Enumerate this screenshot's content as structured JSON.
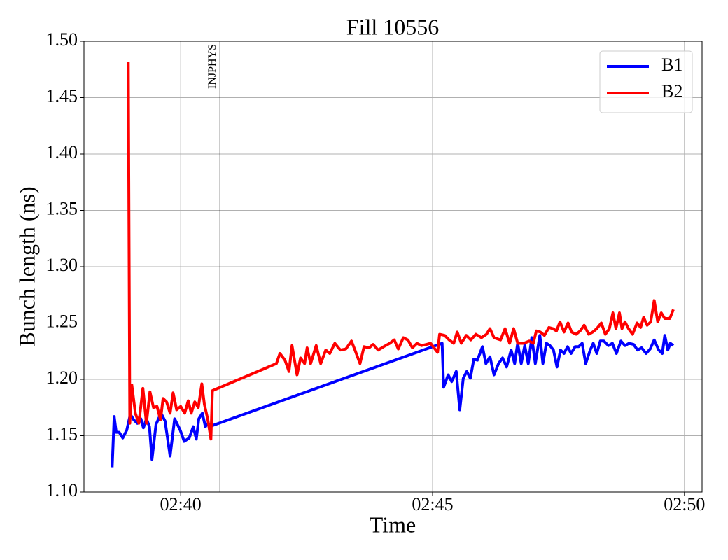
{
  "chart_data": {
    "type": "line",
    "title": "Fill 10556",
    "xlabel": "Time",
    "ylabel": "Bunch length (ns)",
    "xlim": [
      158.08,
      170.35
    ],
    "xticks": [
      {
        "value": 160,
        "label": "02:40"
      },
      {
        "value": 165,
        "label": "02:45"
      },
      {
        "value": 170,
        "label": "02:50"
      }
    ],
    "ylim": [
      1.1,
      1.5
    ],
    "yticks": [
      {
        "value": 1.1,
        "label": "1.10"
      },
      1.15,
      {
        "value": 1.2,
        "label": "1.20"
      },
      1.25,
      {
        "value": 1.3,
        "label": "1.30"
      },
      1.35,
      {
        "value": 1.4,
        "label": "1.40"
      },
      1.45,
      {
        "value": 1.5,
        "label": "1.50"
      }
    ],
    "grid": true,
    "legend": "upper right",
    "annotations": [
      {
        "text": "INJPHYS",
        "x": 160.78
      }
    ],
    "series": [
      {
        "name": "B1",
        "color": "#0000ff",
        "x": [
          158.64,
          158.68,
          158.72,
          158.78,
          158.85,
          158.93,
          159.0,
          159.07,
          159.14,
          159.21,
          159.26,
          159.32,
          159.38,
          159.43,
          159.51,
          159.61,
          159.69,
          159.79,
          159.88,
          159.99,
          160.07,
          160.17,
          160.25,
          160.31,
          160.36,
          160.43,
          160.49,
          160.54,
          160.63,
          165.19,
          165.22,
          165.31,
          165.38,
          165.47,
          165.54,
          165.61,
          165.68,
          165.75,
          165.82,
          165.89,
          165.99,
          166.06,
          166.14,
          166.22,
          166.31,
          166.39,
          166.47,
          166.56,
          166.63,
          166.69,
          166.76,
          166.83,
          166.9,
          166.97,
          167.04,
          167.13,
          167.19,
          167.26,
          167.33,
          167.4,
          167.47,
          167.54,
          167.61,
          167.68,
          167.75,
          167.83,
          167.9,
          167.97,
          168.04,
          168.13,
          168.19,
          168.26,
          168.33,
          168.4,
          168.49,
          168.57,
          168.65,
          168.74,
          168.82,
          168.9,
          168.99,
          169.07,
          169.15,
          169.24,
          169.32,
          169.4,
          169.49,
          169.56,
          169.61,
          169.67,
          169.72,
          169.78
        ],
        "values": [
          1.122,
          1.167,
          1.153,
          1.153,
          1.148,
          1.155,
          1.169,
          1.164,
          1.161,
          1.165,
          1.157,
          1.165,
          1.158,
          1.129,
          1.16,
          1.17,
          1.163,
          1.132,
          1.165,
          1.155,
          1.145,
          1.148,
          1.158,
          1.147,
          1.165,
          1.17,
          1.158,
          1.161,
          1.159,
          1.232,
          1.193,
          1.204,
          1.198,
          1.207,
          1.173,
          1.201,
          1.207,
          1.201,
          1.218,
          1.217,
          1.229,
          1.214,
          1.22,
          1.204,
          1.214,
          1.219,
          1.211,
          1.226,
          1.214,
          1.232,
          1.214,
          1.23,
          1.214,
          1.237,
          1.214,
          1.239,
          1.214,
          1.232,
          1.23,
          1.226,
          1.211,
          1.226,
          1.223,
          1.229,
          1.223,
          1.229,
          1.229,
          1.232,
          1.214,
          1.226,
          1.232,
          1.223,
          1.234,
          1.234,
          1.23,
          1.232,
          1.223,
          1.234,
          1.23,
          1.232,
          1.231,
          1.226,
          1.228,
          1.223,
          1.227,
          1.235,
          1.226,
          1.223,
          1.239,
          1.226,
          1.232,
          1.23
        ]
      },
      {
        "name": "B2",
        "color": "#ff0000",
        "x": [
          158.96,
          158.99,
          159.03,
          159.1,
          159.17,
          159.25,
          159.32,
          159.39,
          159.46,
          159.53,
          159.6,
          159.65,
          159.72,
          159.79,
          159.85,
          159.92,
          160.0,
          160.08,
          160.15,
          160.21,
          160.28,
          160.35,
          160.42,
          160.47,
          160.54,
          160.6,
          160.63,
          161.9,
          161.97,
          162.07,
          162.15,
          162.21,
          162.31,
          162.38,
          162.46,
          162.51,
          162.58,
          162.69,
          162.78,
          162.88,
          162.96,
          163.06,
          163.17,
          163.28,
          163.39,
          163.46,
          163.56,
          163.64,
          163.74,
          163.82,
          163.92,
          164.03,
          164.15,
          164.24,
          164.32,
          164.42,
          164.51,
          164.6,
          164.69,
          164.78,
          164.88,
          164.96,
          165.1,
          165.14,
          165.24,
          165.33,
          165.42,
          165.49,
          165.57,
          165.67,
          165.76,
          165.86,
          165.97,
          166.07,
          166.14,
          166.22,
          166.35,
          166.44,
          166.53,
          166.61,
          166.69,
          166.81,
          166.92,
          167.0,
          167.06,
          167.14,
          167.22,
          167.31,
          167.39,
          167.46,
          167.53,
          167.61,
          167.69,
          167.76,
          167.85,
          167.93,
          168.01,
          168.1,
          168.18,
          168.26,
          168.35,
          168.43,
          168.51,
          168.58,
          168.64,
          168.71,
          168.76,
          168.82,
          168.89,
          168.97,
          169.06,
          169.13,
          169.19,
          169.26,
          169.33,
          169.4,
          169.47,
          169.54,
          169.61,
          169.71,
          169.78
        ],
        "values": [
          1.482,
          1.161,
          1.195,
          1.17,
          1.161,
          1.192,
          1.161,
          1.189,
          1.175,
          1.176,
          1.164,
          1.183,
          1.18,
          1.17,
          1.188,
          1.173,
          1.176,
          1.17,
          1.181,
          1.17,
          1.18,
          1.175,
          1.196,
          1.178,
          1.164,
          1.147,
          1.19,
          1.214,
          1.223,
          1.217,
          1.207,
          1.23,
          1.204,
          1.219,
          1.214,
          1.228,
          1.214,
          1.23,
          1.214,
          1.226,
          1.223,
          1.232,
          1.226,
          1.227,
          1.234,
          1.226,
          1.214,
          1.229,
          1.228,
          1.231,
          1.226,
          1.229,
          1.232,
          1.235,
          1.227,
          1.237,
          1.235,
          1.228,
          1.232,
          1.23,
          1.231,
          1.232,
          1.224,
          1.24,
          1.239,
          1.235,
          1.232,
          1.242,
          1.232,
          1.239,
          1.235,
          1.24,
          1.237,
          1.24,
          1.245,
          1.237,
          1.235,
          1.245,
          1.232,
          1.245,
          1.232,
          1.232,
          1.234,
          1.232,
          1.243,
          1.242,
          1.239,
          1.246,
          1.245,
          1.243,
          1.251,
          1.242,
          1.25,
          1.242,
          1.24,
          1.243,
          1.248,
          1.24,
          1.242,
          1.245,
          1.25,
          1.24,
          1.245,
          1.259,
          1.245,
          1.259,
          1.245,
          1.251,
          1.245,
          1.24,
          1.25,
          1.246,
          1.255,
          1.248,
          1.251,
          1.27,
          1.251,
          1.259,
          1.254,
          1.254,
          1.262
        ]
      }
    ]
  }
}
